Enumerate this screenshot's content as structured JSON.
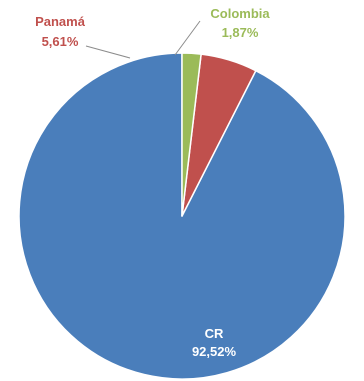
{
  "chart_data": {
    "type": "pie",
    "categories": [
      "CR",
      "Panamá",
      "Colombia"
    ],
    "values": [
      92.52,
      5.61,
      1.87
    ],
    "value_labels": [
      "92,52%",
      "5,61%",
      "1,87%"
    ],
    "colors": [
      "#4A7EBB",
      "#C0504D",
      "#9BBB59"
    ],
    "label_colors": [
      "#ffffff",
      "#C0504D",
      "#9BBB59"
    ],
    "start_angle": "12 o'clock",
    "direction": "counter-clockwise",
    "legend": "none"
  }
}
